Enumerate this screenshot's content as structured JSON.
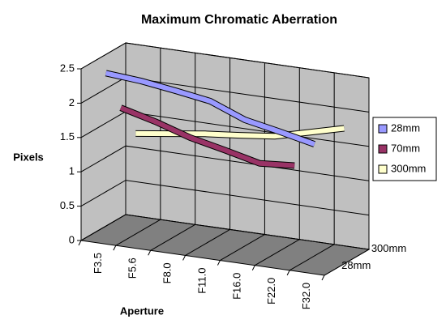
{
  "chart_data": {
    "type": "line3d",
    "title": "Maximum Chromatic Aberration",
    "y_label": "Pixels",
    "x_label": "Aperture",
    "categories": [
      "F3.5",
      "F5.6",
      "F8.0",
      "F11.0",
      "F16.0",
      "F22.0",
      "F32.0"
    ],
    "depth_categories": [
      "28mm",
      null,
      "300mm"
    ],
    "series": [
      {
        "name": "28mm",
        "color": "#9999ff",
        "values": [
          2.41,
          2.37,
          2.3,
          2.22,
          2.02,
          1.92,
          1.81
        ]
      },
      {
        "name": "70mm",
        "color": "#993366",
        "values": [
          1.78,
          1.65,
          1.49,
          1.38,
          1.26,
          1.3,
          null
        ]
      },
      {
        "name": "300mm",
        "color": "#ffffcc",
        "values": [
          1.28,
          1.35,
          1.42,
          1.47,
          1.53,
          1.66,
          1.79
        ]
      }
    ],
    "ylim": [
      0,
      2.5
    ],
    "yticks": [
      0,
      0.5,
      1,
      1.5,
      2,
      2.5
    ],
    "grid": true,
    "legend": "right"
  }
}
